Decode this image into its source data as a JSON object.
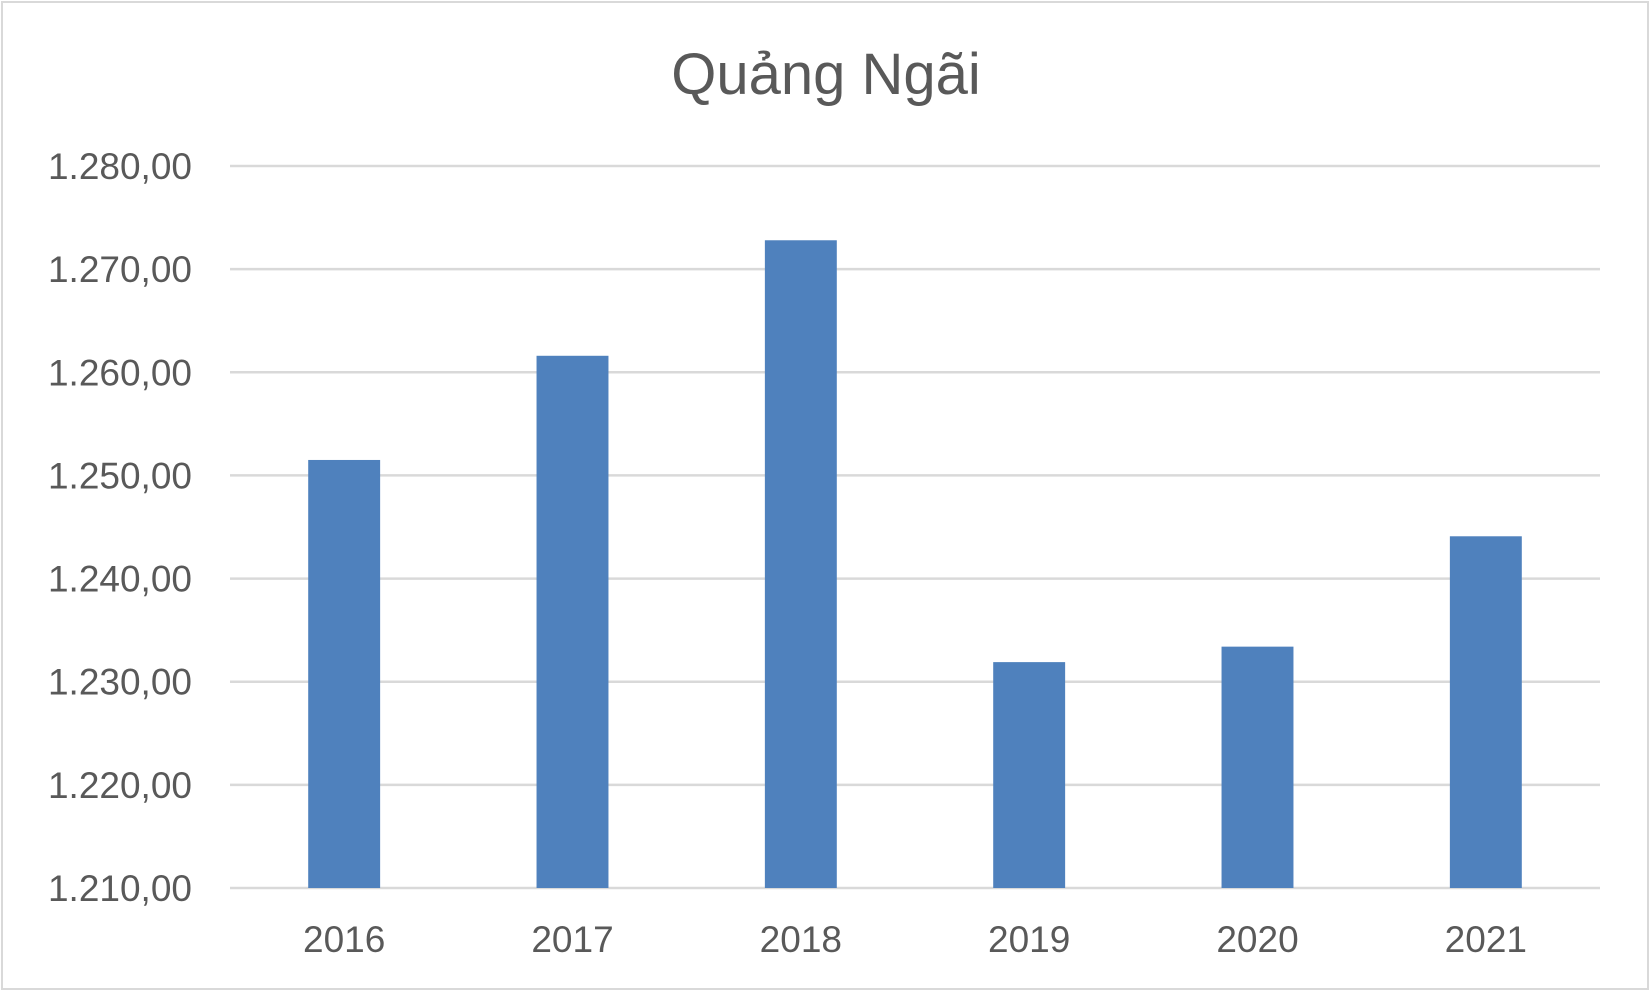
{
  "chart_data": {
    "type": "bar",
    "title": "Quảng Ngãi",
    "xlabel": "",
    "ylabel": "",
    "categories": [
      "2016",
      "2017",
      "2018",
      "2019",
      "2020",
      "2021"
    ],
    "values": [
      1251.5,
      1261.6,
      1272.8,
      1231.9,
      1233.4,
      1244.1
    ],
    "ylim": [
      1210,
      1280
    ],
    "yticks": [
      1210,
      1220,
      1230,
      1240,
      1250,
      1260,
      1270,
      1280
    ],
    "ytick_labels": [
      "1.210,00",
      "1.220,00",
      "1.230,00",
      "1.240,00",
      "1.250,00",
      "1.260,00",
      "1.270,00",
      "1.280,00"
    ],
    "grid": true,
    "legend": "none",
    "bar_color": "#4f81bd"
  }
}
